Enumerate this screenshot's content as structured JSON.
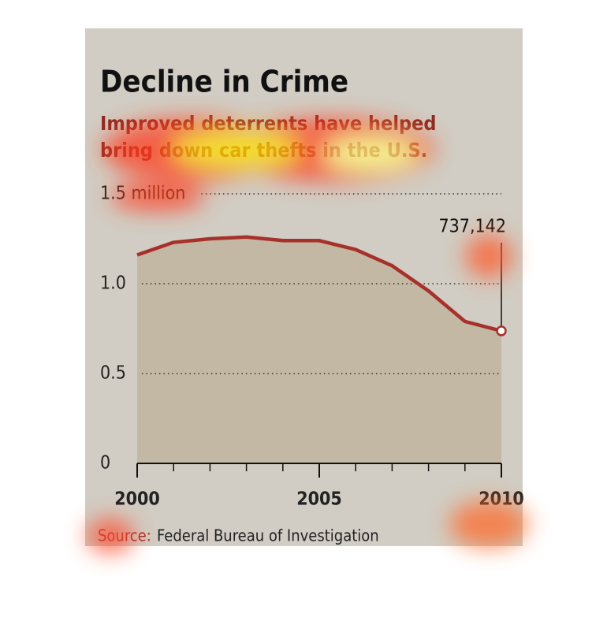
{
  "chart_data": {
    "type": "area",
    "title": "Decline in Crime",
    "subtitle": "Improved deterrents have helped bring down car thefts in the U.S.",
    "source_label": "Source:",
    "source": "Federal Bureau of Investigation",
    "x": [
      2000,
      2001,
      2002,
      2003,
      2004,
      2005,
      2006,
      2007,
      2008,
      2009,
      2010
    ],
    "values": [
      1.16,
      1.23,
      1.25,
      1.26,
      1.24,
      1.24,
      1.19,
      1.1,
      0.96,
      0.79,
      0.737142
    ],
    "end_label": "737,142",
    "color": "#a8302a",
    "fill": "#c2b8a3",
    "xlim": [
      2000,
      2010
    ],
    "xticks": [
      2000,
      2005,
      2010
    ],
    "ylim": [
      0,
      1.5
    ],
    "yticks": [
      0,
      0.5,
      {
        "value": 1,
        "label": "1.0"
      },
      {
        "value": 1.5,
        "label": "1.5 million"
      }
    ],
    "grid": true
  }
}
